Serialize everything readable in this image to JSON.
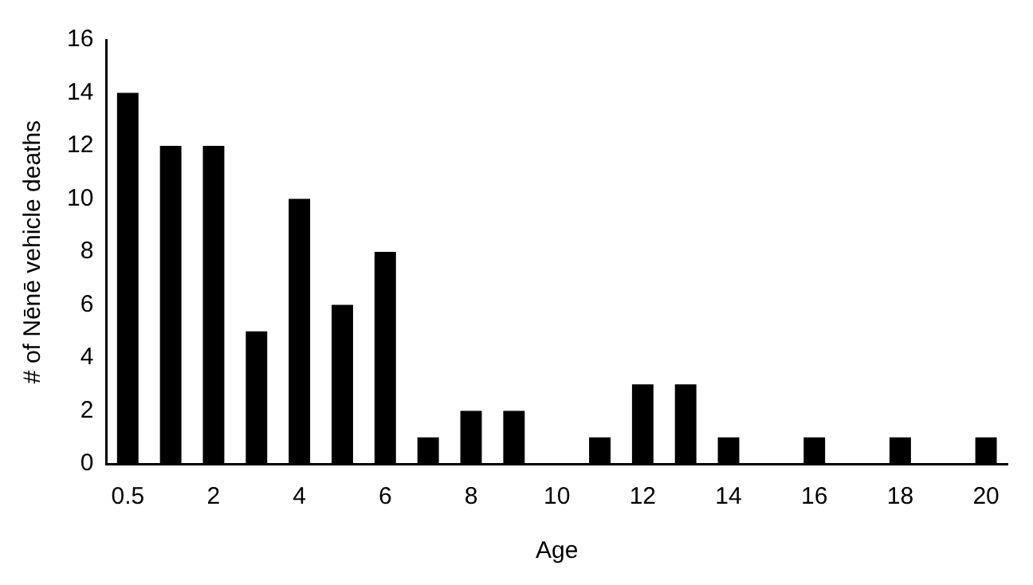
{
  "chart_data": {
    "type": "bar",
    "xlabel": "Age",
    "ylabel": "# of Nēnē vehicle deaths",
    "categories": [
      "0.5",
      null,
      "2",
      null,
      "4",
      null,
      "6",
      null,
      "8",
      null,
      "10",
      null,
      "12",
      null,
      "14",
      null,
      "16",
      null,
      "18",
      null,
      "20"
    ],
    "values": [
      14,
      12,
      12,
      5,
      10,
      6,
      8,
      1,
      2,
      2,
      0,
      1,
      3,
      3,
      1,
      0,
      1,
      0,
      1,
      0,
      1
    ],
    "color": "#000000",
    "ylim": [
      0,
      16
    ],
    "yticks": [
      0,
      2,
      4,
      6,
      8,
      10,
      12,
      14,
      16
    ],
    "grid": false
  }
}
